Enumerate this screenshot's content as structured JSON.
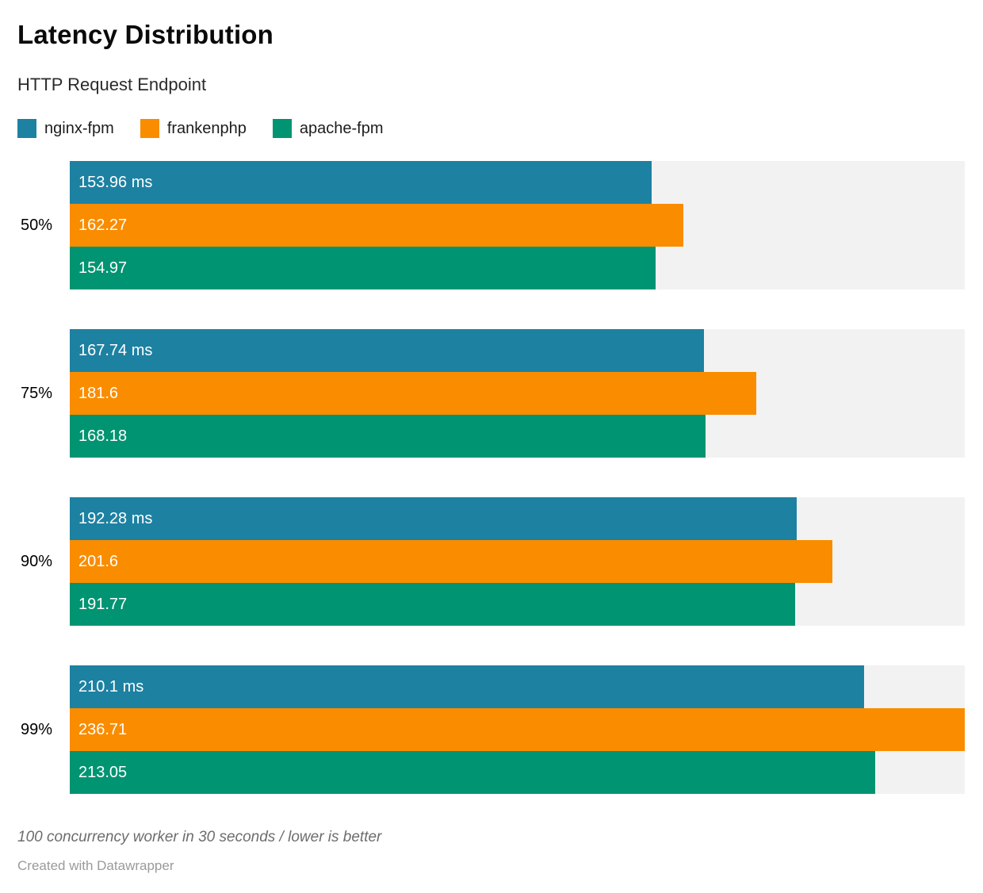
{
  "chart_data": {
    "type": "bar",
    "orientation": "horizontal",
    "title": "Latency Distribution",
    "subtitle": "HTTP Request Endpoint",
    "categories": [
      "50%",
      "75%",
      "90%",
      "99%"
    ],
    "series": [
      {
        "name": "nginx-fpm",
        "color": "#1d81a2",
        "values": [
          153.96,
          167.74,
          192.28,
          210.1
        ],
        "labels": [
          "153.96 ms",
          "167.74 ms",
          "192.28 ms",
          "210.1 ms"
        ]
      },
      {
        "name": "frankenphp",
        "color": "#fa8c00",
        "values": [
          162.27,
          181.6,
          201.6,
          236.71
        ],
        "labels": [
          "162.27",
          "181.6",
          "201.6",
          "236.71"
        ]
      },
      {
        "name": "apache-fpm",
        "color": "#009472",
        "values": [
          154.97,
          168.18,
          191.77,
          213.05
        ],
        "labels": [
          "154.97",
          "168.18",
          "191.77",
          "213.05"
        ]
      }
    ],
    "unit": "ms",
    "xlim": [
      0,
      236.71
    ],
    "grid": false,
    "legend_position": "top",
    "track_color": "#f2f2f2",
    "notes": "100 concurrency worker in 30 seconds / lower is better",
    "attribution": "Created with Datawrapper"
  }
}
